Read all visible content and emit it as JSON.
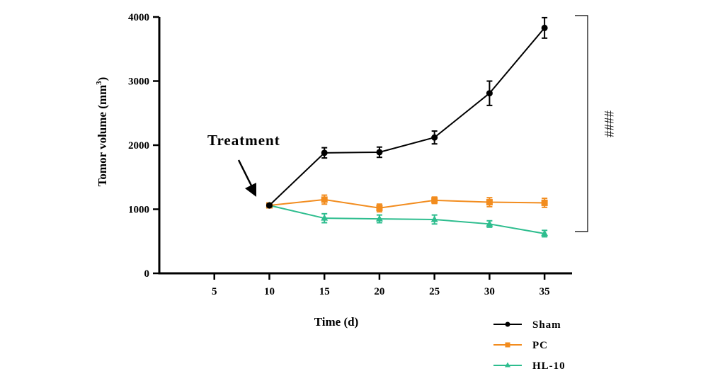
{
  "chart_data": {
    "type": "line",
    "x": [
      10,
      15,
      20,
      25,
      30,
      35
    ],
    "xticks": [
      5,
      10,
      15,
      20,
      25,
      30,
      35
    ],
    "yticks": [
      0,
      1000,
      2000,
      3000,
      4000
    ],
    "xlim": [
      0,
      37.5
    ],
    "ylim": [
      0,
      4000
    ],
    "xlabel": "Time (d)",
    "ylabel_main": "Tomor volume (mm",
    "ylabel_sup": "3",
    "ylabel_close": ")",
    "annotation": "Treatment",
    "annotation_x": 10,
    "significance": "####",
    "legend_position": "bottom-right",
    "series": [
      {
        "name": "Sham",
        "color": "#000000",
        "marker": "circle",
        "values": [
          1060,
          1880,
          1890,
          2120,
          2810,
          3830
        ],
        "errors": [
          20,
          80,
          80,
          100,
          190,
          160
        ]
      },
      {
        "name": "PC",
        "color": "#f28c1e",
        "marker": "square",
        "values": [
          1060,
          1150,
          1020,
          1140,
          1110,
          1100
        ],
        "errors": [
          20,
          70,
          60,
          50,
          70,
          70
        ]
      },
      {
        "name": "HL-10",
        "color": "#2dbd8e",
        "marker": "triangle",
        "values": [
          1060,
          860,
          850,
          840,
          770,
          620
        ],
        "errors": [
          20,
          70,
          60,
          70,
          50,
          50
        ]
      }
    ]
  }
}
